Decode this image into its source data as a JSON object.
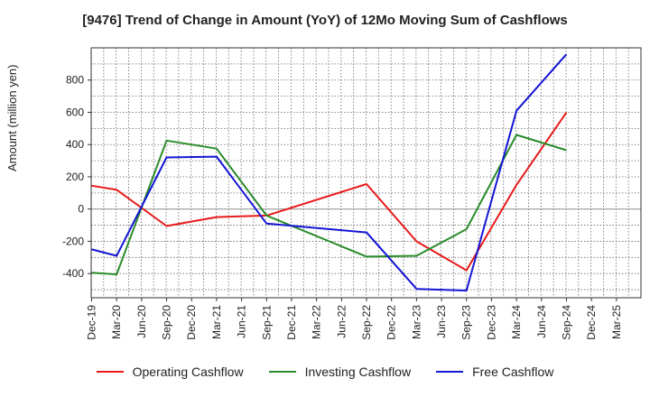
{
  "chart_data": {
    "type": "line",
    "title": "[9476]  Trend of Change in Amount (YoY) of 12Mo Moving Sum of Cashflows",
    "xlabel": "",
    "ylabel": "Amount (million yen)",
    "categories": [
      "Dec-19",
      "Mar-20",
      "Jun-20",
      "Sep-20",
      "Dec-20",
      "Mar-21",
      "Jun-21",
      "Sep-21",
      "Dec-21",
      "Mar-22",
      "Jun-22",
      "Sep-22",
      "Dec-22",
      "Mar-23",
      "Jun-23",
      "Sep-23",
      "Dec-23",
      "Mar-24",
      "Jun-24",
      "Sep-24",
      "Dec-24",
      "Mar-25"
    ],
    "ylim": [
      -550,
      1000
    ],
    "yticks": [
      -400,
      -200,
      0,
      200,
      400,
      600,
      800
    ],
    "ytick_labels": [
      "-400",
      "-200",
      "0",
      "200",
      "400",
      "600",
      "800"
    ],
    "grid": true,
    "legend_position": "bottom",
    "series": [
      {
        "name": "Operating Cashflow",
        "color": "#e8191a",
        "values": [
          145,
          120,
          null,
          -105,
          null,
          -50,
          null,
          -40,
          null,
          null,
          null,
          155,
          null,
          -200,
          null,
          -380,
          null,
          150,
          null,
          600,
          null,
          null
        ]
      },
      {
        "name": "Investing Cashflow",
        "color": "#2a8c2a",
        "values": [
          -395,
          -405,
          null,
          425,
          null,
          375,
          null,
          -40,
          null,
          null,
          null,
          -295,
          null,
          -290,
          null,
          -125,
          null,
          460,
          null,
          365,
          null,
          null
        ]
      },
      {
        "name": "Free Cashflow",
        "color": "#1515d6",
        "values": [
          -250,
          -290,
          null,
          320,
          null,
          325,
          null,
          -90,
          null,
          null,
          null,
          -145,
          null,
          -495,
          null,
          -505,
          null,
          610,
          null,
          960,
          null,
          null
        ]
      }
    ]
  }
}
